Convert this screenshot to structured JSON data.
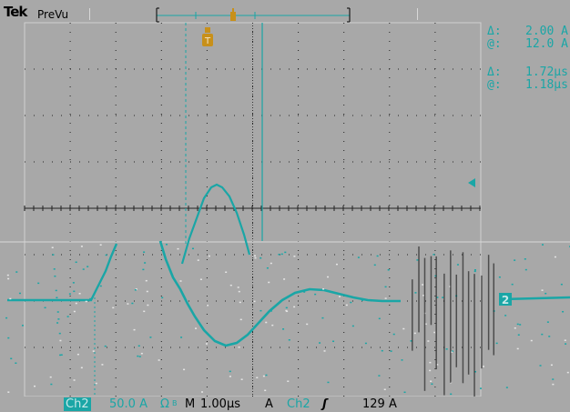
{
  "header": {
    "brand": "Tek",
    "mode": "PreVu"
  },
  "readout": {
    "amp_delta_label": "Δ:",
    "amp_delta_value": "2.00 A",
    "amp_at_label": "@:",
    "amp_at_value": "12.0 A",
    "time_delta_label": "Δ:",
    "time_delta_value": "1.72µs",
    "time_at_label": "@:",
    "time_at_value": "1.18µs"
  },
  "trigger_marker": "T",
  "channel_marker": "2",
  "footer": {
    "channel": "Ch2",
    "scale": "50.0 A",
    "coupling": "Ω",
    "bw": "B",
    "timebase_prefix": "M",
    "timebase": "1.00µs",
    "trigger_mode": "A",
    "trigger_source": "Ch2",
    "slope": "ʃ",
    "trigger_level": "129 A"
  },
  "colors": {
    "trace": "#1aa6a6",
    "trigger": "#c8901a",
    "background": "#a8a8a8"
  }
}
